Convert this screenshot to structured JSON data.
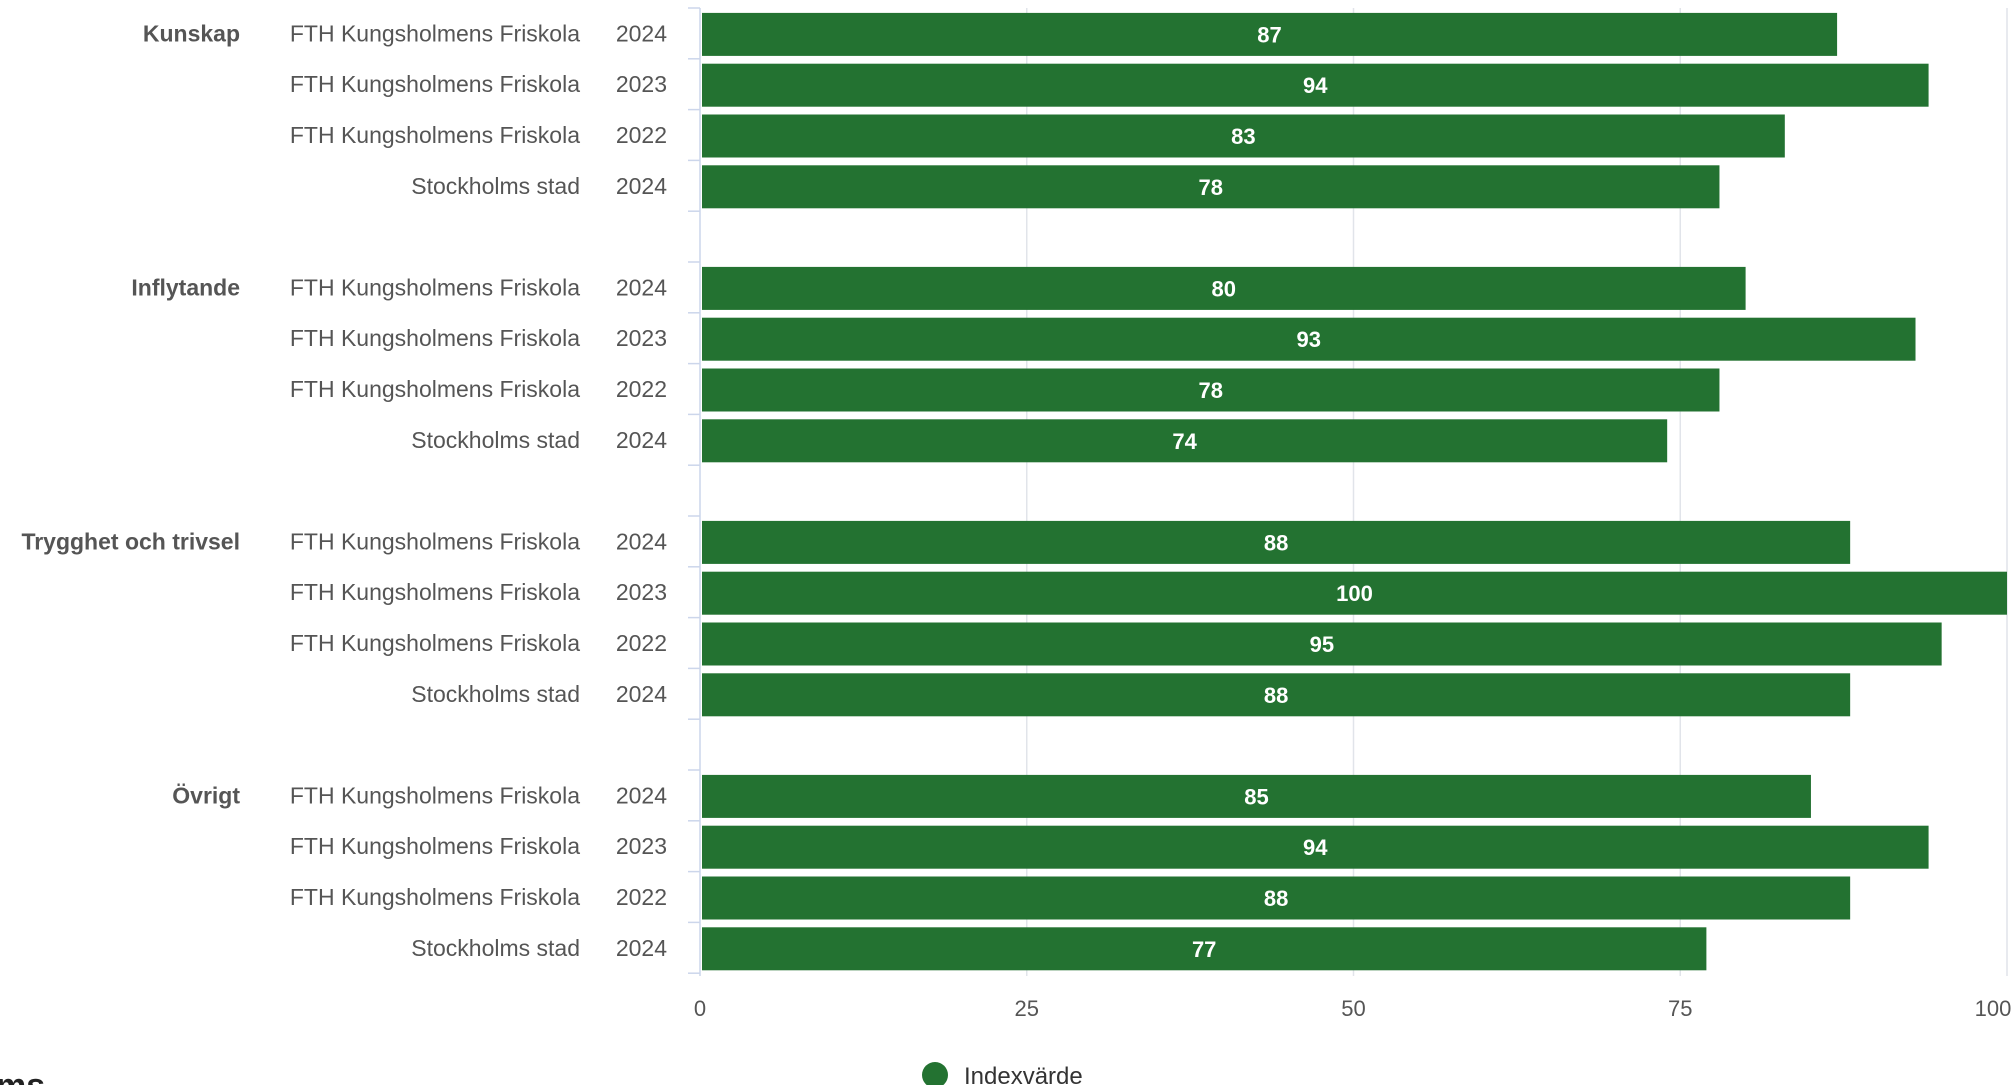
{
  "chart_data": {
    "type": "bar",
    "orientation": "horizontal",
    "xlim": [
      0,
      100
    ],
    "x_ticks": [
      0,
      25,
      50,
      75,
      100
    ],
    "grid": true,
    "legend": {
      "position": "bottom-center",
      "label": "Indexvärde"
    },
    "colors": {
      "bar": "#237231",
      "grid": "#e1e4ea",
      "axis": "#ccd6eb",
      "text": "#555555"
    },
    "series": [
      {
        "name": "Indexvärde"
      }
    ],
    "groups": [
      {
        "category": "Kunskap",
        "rows": [
          {
            "school": "FTH Kungsholmens Friskola",
            "year": "2024",
            "value": 87
          },
          {
            "school": "FTH Kungsholmens Friskola",
            "year": "2023",
            "value": 94
          },
          {
            "school": "FTH Kungsholmens Friskola",
            "year": "2022",
            "value": 83
          },
          {
            "school": "Stockholms stad",
            "year": "2024",
            "value": 78
          }
        ]
      },
      {
        "category": "Inflytande",
        "rows": [
          {
            "school": "FTH Kungsholmens Friskola",
            "year": "2024",
            "value": 80
          },
          {
            "school": "FTH Kungsholmens Friskola",
            "year": "2023",
            "value": 93
          },
          {
            "school": "FTH Kungsholmens Friskola",
            "year": "2022",
            "value": 78
          },
          {
            "school": "Stockholms stad",
            "year": "2024",
            "value": 74
          }
        ]
      },
      {
        "category": "Trygghet och trivsel",
        "rows": [
          {
            "school": "FTH Kungsholmens Friskola",
            "year": "2024",
            "value": 88
          },
          {
            "school": "FTH Kungsholmens Friskola",
            "year": "2023",
            "value": 100
          },
          {
            "school": "FTH Kungsholmens Friskola",
            "year": "2022",
            "value": 95
          },
          {
            "school": "Stockholms stad",
            "year": "2024",
            "value": 88
          }
        ]
      },
      {
        "category": "Övrigt",
        "rows": [
          {
            "school": "FTH Kungsholmens Friskola",
            "year": "2024",
            "value": 85
          },
          {
            "school": "FTH Kungsholmens Friskola",
            "year": "2023",
            "value": 94
          },
          {
            "school": "FTH Kungsholmens Friskola",
            "year": "2022",
            "value": 88
          },
          {
            "school": "Stockholms stad",
            "year": "2024",
            "value": 77
          }
        ]
      }
    ]
  },
  "logo": {
    "fragment": "ms"
  }
}
